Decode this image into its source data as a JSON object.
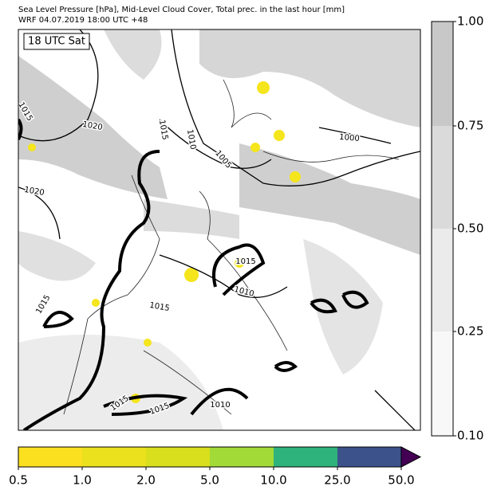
{
  "header": {
    "line1": "Sea Level Pressure [hPa], Mid-Level Cloud Cover, Total prec. in the last hour [mm]",
    "line2": "WRF 04.07.2019 18:00 UTC +48"
  },
  "map": {
    "time_label": "18 UTC Sat",
    "contour_labels": [
      "1015",
      "1020",
      "1015",
      "1010",
      "1005",
      "1000",
      "1020",
      "1015",
      "1015",
      "1010",
      "1015",
      "1015",
      "1015",
      "1010"
    ]
  },
  "cloud_colorbar": {
    "labels": [
      "1.00",
      "0.75",
      "0.50",
      "0.25",
      "0.10"
    ]
  },
  "precip_colorbar": {
    "labels": [
      "0.5",
      "1.0",
      "2.0",
      "5.0",
      "10.0",
      "25.0",
      "50.0"
    ]
  }
}
